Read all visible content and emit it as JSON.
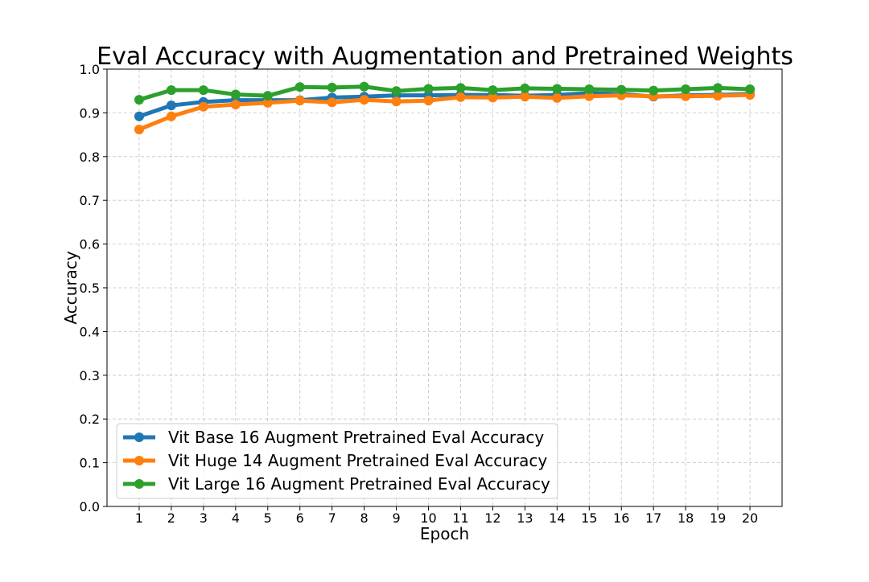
{
  "chart_data": {
    "type": "line",
    "title": "Eval Accuracy with Augmentation and Pretrained Weights",
    "xlabel": "Epoch",
    "ylabel": "Accuracy",
    "x": [
      1,
      2,
      3,
      4,
      5,
      6,
      7,
      8,
      9,
      10,
      11,
      12,
      13,
      14,
      15,
      16,
      17,
      18,
      19,
      20
    ],
    "xlim": [
      0,
      21
    ],
    "ylim": [
      0.0,
      1.0
    ],
    "yticks": [
      "0.0",
      "0.1",
      "0.2",
      "0.3",
      "0.4",
      "0.5",
      "0.6",
      "0.7",
      "0.8",
      "0.9",
      "1.0"
    ],
    "xticks": [
      "1",
      "2",
      "3",
      "4",
      "5",
      "6",
      "7",
      "8",
      "9",
      "10",
      "11",
      "12",
      "13",
      "14",
      "15",
      "16",
      "17",
      "18",
      "19",
      "20"
    ],
    "grid": true,
    "legend_position": "bottom-left",
    "series": [
      {
        "name": "Vit Base 16 Augment Pretrained Eval Accuracy",
        "color": "#1f77b4",
        "values": [
          0.892,
          0.917,
          0.925,
          0.929,
          0.929,
          0.929,
          0.935,
          0.937,
          0.94,
          0.94,
          0.941,
          0.941,
          0.939,
          0.941,
          0.945,
          0.943,
          0.937,
          0.94,
          0.941,
          0.943
        ]
      },
      {
        "name": "Vit Huge 14 Augment Pretrained Eval Accuracy",
        "color": "#ff7f0e",
        "values": [
          0.862,
          0.892,
          0.914,
          0.919,
          0.923,
          0.928,
          0.924,
          0.93,
          0.926,
          0.928,
          0.936,
          0.935,
          0.937,
          0.934,
          0.938,
          0.94,
          0.938,
          0.938,
          0.939,
          0.941
        ]
      },
      {
        "name": "Vit Large 16 Augment Pretrained Eval Accuracy",
        "color": "#2ca02c",
        "values": [
          0.93,
          0.952,
          0.952,
          0.942,
          0.939,
          0.959,
          0.958,
          0.96,
          0.95,
          0.955,
          0.957,
          0.952,
          0.956,
          0.955,
          0.954,
          0.953,
          0.951,
          0.954,
          0.957,
          0.954
        ]
      }
    ]
  }
}
